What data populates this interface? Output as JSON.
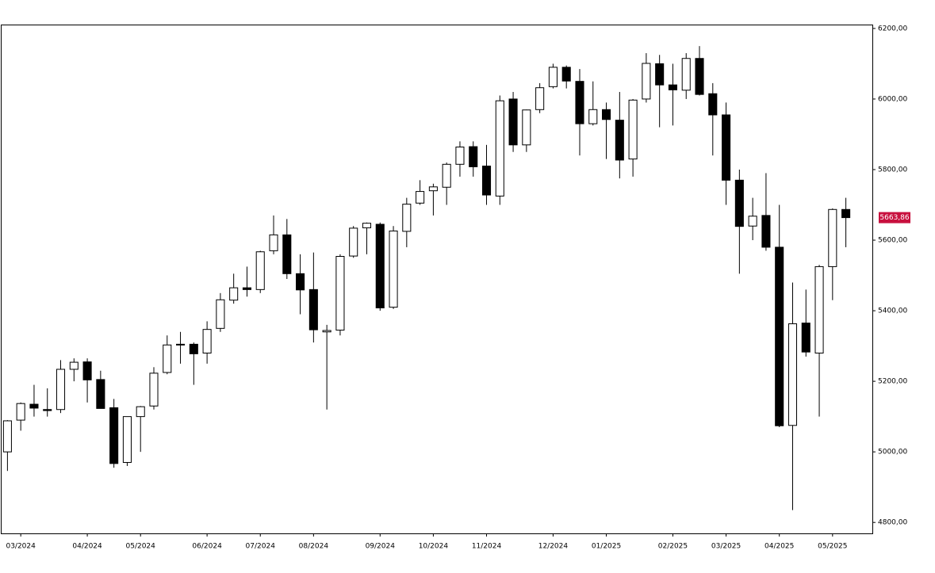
{
  "chart_data": {
    "type": "candlestick",
    "categories": [
      null,
      "03/2024",
      null,
      null,
      null,
      null,
      "04/2024",
      null,
      null,
      null,
      "05/2024",
      null,
      null,
      null,
      null,
      "06/2024",
      null,
      null,
      null,
      "07/2024",
      null,
      null,
      null,
      "08/2024",
      null,
      null,
      null,
      null,
      "09/2024",
      null,
      null,
      null,
      "10/2024",
      null,
      null,
      null,
      "11/2024",
      null,
      null,
      null,
      null,
      "12/2024",
      null,
      null,
      null,
      "01/2025",
      null,
      null,
      null,
      null,
      "02/2025",
      null,
      null,
      null,
      "03/2025",
      null,
      null,
      null,
      "04/2025",
      null,
      null,
      null,
      "05/2025",
      null
    ],
    "open": [
      5000,
      5090,
      5135,
      5120,
      5120,
      5234,
      5255,
      5205,
      5125,
      4970,
      5100,
      5130,
      5225,
      5305,
      5305,
      5280,
      5350,
      5430,
      5465,
      5460,
      5570,
      5615,
      5505,
      5460,
      5340,
      5345,
      5555,
      5635,
      5645,
      5410,
      5625,
      5705,
      5740,
      5750,
      5815,
      5865,
      5810,
      5725,
      6000,
      5870,
      5970,
      6035,
      6090,
      6050,
      5930,
      5970,
      5940,
      5830,
      6000,
      6100,
      6040,
      6025,
      6115,
      6015,
      5955,
      5770,
      5640,
      5670,
      5580,
      5075,
      5365,
      5280,
      5525,
      5687
    ],
    "high": [
      5090,
      5140,
      5190,
      5180,
      5260,
      5265,
      5265,
      5230,
      5150,
      5100,
      5130,
      5240,
      5330,
      5340,
      5310,
      5370,
      5450,
      5505,
      5525,
      5570,
      5670,
      5660,
      5560,
      5565,
      5360,
      5560,
      5640,
      5650,
      5650,
      5640,
      5720,
      5770,
      5760,
      5820,
      5880,
      5880,
      5870,
      6010,
      6020,
      5970,
      6045,
      6100,
      6095,
      6085,
      6050,
      5990,
      6020,
      6000,
      6130,
      6125,
      6100,
      6130,
      6150,
      6045,
      5990,
      5800,
      5720,
      5790,
      5700,
      5480,
      5460,
      5530,
      5690,
      5720
    ],
    "low": [
      4946,
      5060,
      5100,
      5100,
      5110,
      5200,
      5140,
      5125,
      4955,
      4960,
      5000,
      5120,
      5220,
      5250,
      5190,
      5250,
      5340,
      5420,
      5440,
      5450,
      5560,
      5490,
      5390,
      5310,
      5120,
      5330,
      5550,
      5560,
      5400,
      5405,
      5580,
      5700,
      5670,
      5700,
      5780,
      5780,
      5700,
      5700,
      5850,
      5850,
      5960,
      6030,
      6030,
      5840,
      5925,
      5830,
      5775,
      5780,
      5990,
      5920,
      5925,
      6000,
      6010,
      5840,
      5700,
      5505,
      5600,
      5570,
      5070,
      4835,
      5270,
      5100,
      5430,
      5580
    ],
    "close": [
      5088,
      5137,
      5124,
      5117,
      5234,
      5254,
      5204,
      5123,
      4967,
      5100,
      5128,
      5223,
      5303,
      5305,
      5278,
      5347,
      5431,
      5465,
      5460,
      5567,
      5615,
      5505,
      5459,
      5346,
      5344,
      5554,
      5634,
      5648,
      5408,
      5626,
      5702,
      5738,
      5751,
      5815,
      5864,
      5808,
      5728,
      5995,
      5870,
      5969,
      6032,
      6090,
      6051,
      5930,
      5970,
      5942,
      5827,
      5997,
      6101,
      6040,
      6026,
      6115,
      6013,
      5955,
      5770,
      5639,
      5668,
      5580,
      5074,
      5363,
      5283,
      5525,
      5687,
      5663.86
    ],
    "up_color": "#ffffff",
    "down_color": "#000000",
    "wick_color": "#000000",
    "last_price": {
      "value": 5663.86,
      "label": "5663,86",
      "color": "#c8103e"
    },
    "ylim": [
      4769,
      6211
    ],
    "yticks": [
      {
        "value": 4800,
        "label": "4800,00"
      },
      {
        "value": 5000,
        "label": "5000,00"
      },
      {
        "value": 5200,
        "label": "5200,00"
      },
      {
        "value": 5400,
        "label": "5400,00"
      },
      {
        "value": 5600,
        "label": "5600,00"
      },
      {
        "value": 5800,
        "label": "5800,00"
      },
      {
        "value": 6000,
        "label": "6000,00"
      },
      {
        "value": 6200,
        "label": "6200,00"
      }
    ],
    "grid": false
  }
}
